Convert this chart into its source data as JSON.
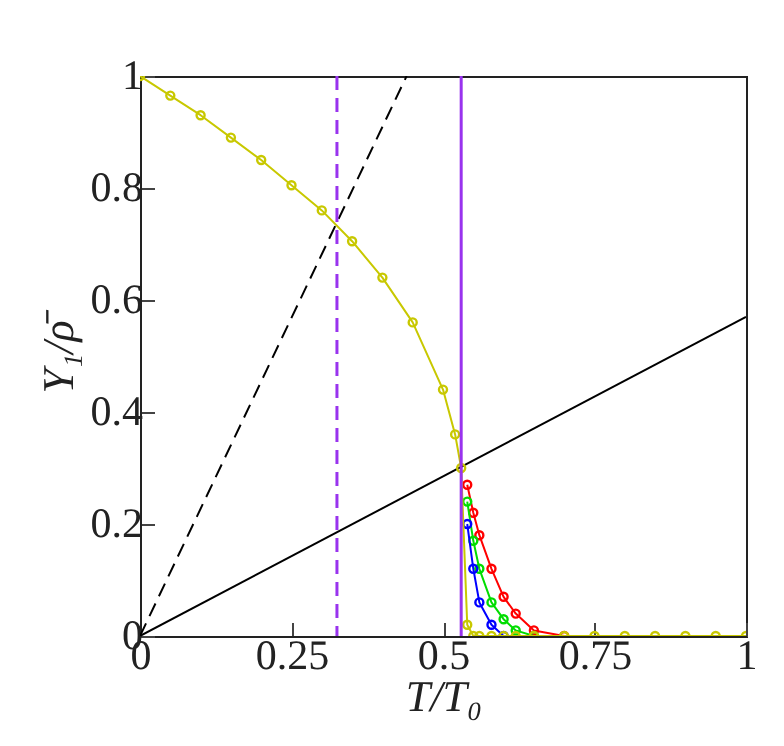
{
  "chart_data": {
    "type": "line",
    "xlabel": "T/T₀",
    "ylabel": "Υ₁/ρ̄",
    "xlim": [
      0,
      1
    ],
    "ylim": [
      0,
      1
    ],
    "xticks": [
      0,
      0.25,
      0.5,
      0.75,
      1
    ],
    "yticks": [
      0,
      0.2,
      0.4,
      0.6,
      0.8,
      1
    ],
    "grid": false,
    "marker": "circle",
    "series": [
      {
        "color": "#000000",
        "type": "line",
        "marker": "none",
        "line_style": "dashed",
        "x": [
          0,
          0.44
        ],
        "values": [
          0,
          1
        ]
      },
      {
        "color": "#000000",
        "type": "line",
        "marker": "none",
        "line_style": "solid",
        "x": [
          0,
          1
        ],
        "values": [
          0,
          0.57
        ]
      },
      {
        "color": "#ff0000",
        "x": [
          0.54,
          0.55,
          0.56,
          0.58,
          0.6,
          0.62,
          0.65,
          0.7
        ],
        "values": [
          0.27,
          0.22,
          0.18,
          0.12,
          0.07,
          0.04,
          0.01,
          0
        ]
      },
      {
        "color": "#00dd00",
        "x": [
          0.54,
          0.55,
          0.56,
          0.58,
          0.6,
          0.62,
          0.65
        ],
        "values": [
          0.24,
          0.17,
          0.12,
          0.06,
          0.03,
          0.01,
          0
        ]
      },
      {
        "color": "#0000ff",
        "x": [
          0.54,
          0.55,
          0.56,
          0.58,
          0.6
        ],
        "values": [
          0.2,
          0.12,
          0.06,
          0.02,
          0
        ]
      },
      {
        "color": "#c8c800",
        "x": [
          0,
          0.05,
          0.1,
          0.15,
          0.2,
          0.25,
          0.3,
          0.35,
          0.4,
          0.45,
          0.5,
          0.52,
          0.53,
          0.54,
          0.55,
          0.56,
          0.58,
          0.6,
          0.62,
          0.65,
          0.7,
          0.75,
          0.8,
          0.85,
          0.9,
          0.95,
          1
        ],
        "values": [
          1,
          0.965,
          0.93,
          0.89,
          0.85,
          0.805,
          0.76,
          0.705,
          0.64,
          0.56,
          0.44,
          0.36,
          0.3,
          0.02,
          0,
          0,
          0,
          0,
          0,
          0,
          0,
          0,
          0,
          0,
          0,
          0,
          0
        ]
      }
    ],
    "ref_lines": [
      {
        "axis": "x",
        "value": 0.325,
        "color": "#9933ee",
        "line_style": "dashed"
      },
      {
        "axis": "x",
        "value": 0.53,
        "color": "#9933ee",
        "line_style": "solid"
      }
    ]
  }
}
